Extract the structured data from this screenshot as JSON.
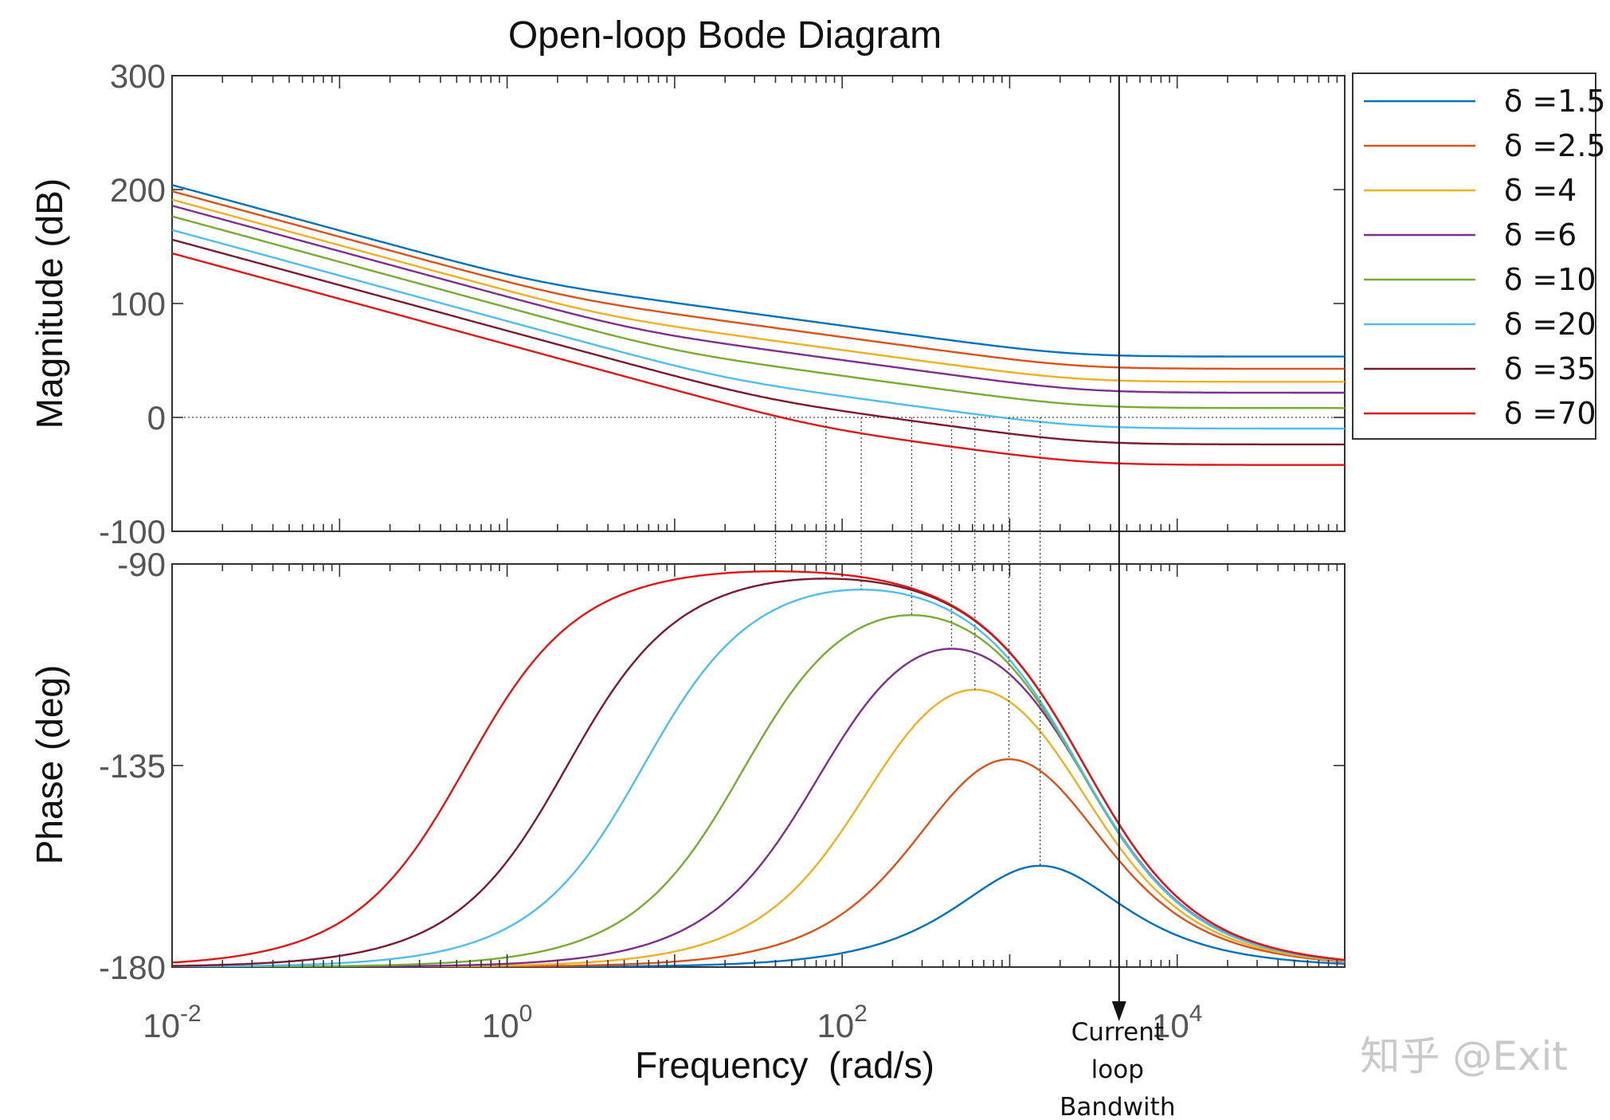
{
  "chart_data": {
    "type": "line",
    "title": "Open-loop Bode Diagram",
    "xlabel": "Frequency  (rad/s)",
    "x_scale": "log",
    "xlim": [
      0.01,
      100000
    ],
    "x_ticks": [
      {
        "base": "10",
        "exp": "-2"
      },
      {
        "base": "10",
        "exp": "0"
      },
      {
        "base": "10",
        "exp": "2"
      },
      {
        "base": "10",
        "exp": "4"
      }
    ],
    "legend_position": "outside-top-right",
    "panels": [
      {
        "name": "magnitude",
        "ylabel": "Magnitude (dB)",
        "ylim": [
          -100,
          300
        ],
        "yticks": [
          "300",
          "200",
          "100",
          "0",
          "-100"
        ]
      },
      {
        "name": "phase",
        "ylabel": "Phase (deg)",
        "ylim": [
          -180,
          -90
        ],
        "yticks": [
          "-90",
          "-135",
          "-180"
        ]
      }
    ],
    "series": [
      {
        "name": "δ =1.5",
        "delta": 1.5,
        "color": "#0072BD"
      },
      {
        "name": "δ =2.5",
        "delta": 2.5,
        "color": "#D95319"
      },
      {
        "name": "δ =4",
        "delta": 4,
        "color": "#EDB120"
      },
      {
        "name": "δ =6",
        "delta": 6,
        "color": "#7E2F8E"
      },
      {
        "name": "δ =10",
        "delta": 10,
        "color": "#77AC30"
      },
      {
        "name": "δ =20",
        "delta": 20,
        "color": "#4DBEEE"
      },
      {
        "name": "δ =35",
        "delta": 35,
        "color": "#7B1A2E"
      },
      {
        "name": "δ =70",
        "delta": 70,
        "color": "#E01515"
      }
    ],
    "crossover_frequencies": [
      1520,
      990,
      620,
      450,
      260,
      130,
      80,
      40
    ],
    "bandwidth_marker": {
      "x": 4500,
      "label_lines": [
        "Current",
        "loop",
        "Bandwith"
      ]
    },
    "watermark": "知乎 @Exit"
  }
}
